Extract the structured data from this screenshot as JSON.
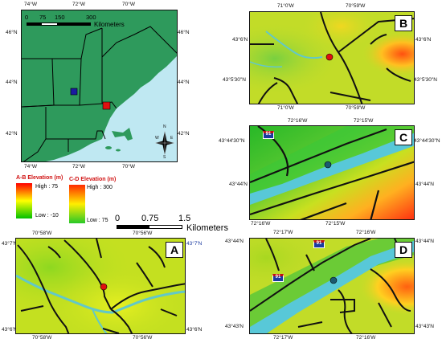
{
  "overview": {
    "top_lon_labels": [
      "74°W",
      "72°W",
      "70°W"
    ],
    "bottom_lon_labels": [
      "74°W",
      "72°W",
      "70°W"
    ],
    "left_lat_labels": [
      "46°N",
      "44°N",
      "42°N"
    ],
    "right_lat_labels": [
      "46°N",
      "44°N",
      "42°N"
    ],
    "scalebar": {
      "ticks": [
        "0",
        "75",
        "150",
        "300"
      ],
      "unit": "Kilometers"
    },
    "north_arrow": {
      "n": "N",
      "e": "E",
      "s": "S",
      "w": "W"
    },
    "colors": {
      "water": "#bfe8f2",
      "land": "#2e9a5c",
      "site_red": "#e01010",
      "site_blue": "#1a1aa0"
    }
  },
  "legend": {
    "ab": {
      "title": "A-B Elevation (m)",
      "high": "High : 75",
      "low": "Low : -10"
    },
    "cd": {
      "title": "C-D Elevation (m)",
      "high": "High : 300",
      "low": "Low : 75"
    },
    "scale": {
      "ticks": [
        "0",
        "0.75",
        "1.5"
      ],
      "unit": "Kilometers"
    }
  },
  "panels": {
    "A": {
      "letter": "A",
      "top": [
        "70°58'W",
        "70°56'W"
      ],
      "bottom": [
        "70°58'W",
        "70°56'W"
      ],
      "left": [
        "43°7'N",
        "43°6'N"
      ],
      "right": [
        "43°7'N",
        "43°6'N"
      ]
    },
    "B": {
      "letter": "B",
      "top": [
        "71°0'W",
        "70°59'W"
      ],
      "bottom": [
        "71°0'W",
        "70°59'W"
      ],
      "left": [
        "43°6'N",
        "43°5'30\"N"
      ],
      "right": [
        "43°6'N",
        "43°5'30\"N"
      ]
    },
    "C": {
      "letter": "C",
      "top": [
        "72°16'W",
        "72°15'W"
      ],
      "bottom": [
        "72°16'W",
        "72°15'W"
      ],
      "left": [
        "43°44'30\"N",
        "43°44'N"
      ],
      "right": [
        "43°44'30\"N",
        "43°44'N"
      ],
      "shield": "91"
    },
    "D": {
      "letter": "D",
      "top": [
        "72°17'W",
        "72°16'W"
      ],
      "bottom": [
        "72°17'W",
        "72°16'W"
      ],
      "left": [
        "43°44'N",
        "43°43'N"
      ],
      "right": [
        "43°44'N",
        "43°43'N"
      ],
      "shields": [
        "91",
        "91"
      ]
    }
  }
}
